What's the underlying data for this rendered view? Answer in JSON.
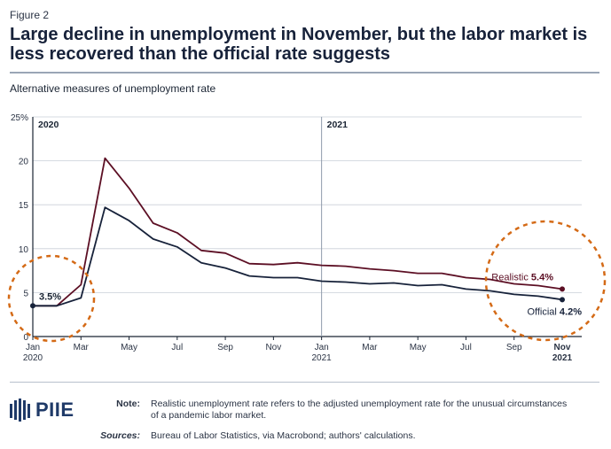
{
  "figure_label": "Figure 2",
  "title": "Large decline in unemployment in November, but the labor market is less recovered than the official rate suggests",
  "chart_data": {
    "type": "line",
    "title": "Large decline in unemployment in November, but the labor market is less recovered than the official rate suggests",
    "subtitle": "Alternative measures of unemployment rate",
    "ylim": [
      0,
      25
    ],
    "yticks": [
      "0",
      "5",
      "10",
      "15",
      "20",
      "25%"
    ],
    "x_tick_labels": [
      {
        "label": "Jan",
        "sub": "2020",
        "index": 0
      },
      {
        "label": "Mar",
        "sub": "",
        "index": 2
      },
      {
        "label": "May",
        "sub": "",
        "index": 4
      },
      {
        "label": "Jul",
        "sub": "",
        "index": 6
      },
      {
        "label": "Sep",
        "sub": "",
        "index": 8
      },
      {
        "label": "Nov",
        "sub": "",
        "index": 10
      },
      {
        "label": "Jan",
        "sub": "2021",
        "index": 12
      },
      {
        "label": "Mar",
        "sub": "",
        "index": 14
      },
      {
        "label": "May",
        "sub": "",
        "index": 16
      },
      {
        "label": "Jul",
        "sub": "",
        "index": 18
      },
      {
        "label": "Sep",
        "sub": "",
        "index": 20
      },
      {
        "label": "Nov",
        "sub": "2021",
        "index": 22
      }
    ],
    "year_markers": [
      {
        "label": "2020",
        "index": 0
      },
      {
        "label": "2021",
        "index": 12
      }
    ],
    "series": [
      {
        "name": "Realistic",
        "color": "#5c0f24",
        "end_label": "5.4%",
        "values": [
          3.5,
          3.5,
          5.9,
          20.3,
          16.9,
          12.9,
          11.8,
          9.8,
          9.5,
          8.3,
          8.2,
          8.4,
          8.1,
          8.0,
          7.7,
          7.5,
          7.2,
          7.2,
          6.7,
          6.5,
          6.0,
          5.8,
          5.4
        ]
      },
      {
        "name": "Official",
        "color": "#17223a",
        "end_label": "4.2%",
        "values": [
          3.5,
          3.5,
          4.4,
          14.7,
          13.2,
          11.1,
          10.2,
          8.4,
          7.8,
          6.9,
          6.7,
          6.7,
          6.3,
          6.2,
          6.0,
          6.1,
          5.8,
          5.9,
          5.4,
          5.2,
          4.8,
          4.6,
          4.2
        ]
      }
    ],
    "start_label": "3.5%",
    "highlight_color": "#d46a16"
  },
  "notes": {
    "note_label": "Note:",
    "note_text": "Realistic unemployment rate refers to the adjusted unemployment rate for the unusual circumstances of a pandemic labor market.",
    "sources_label": "Sources:",
    "sources_text": "Bureau of Labor Statistics, via Macrobond; authors' calculations."
  },
  "logo": {
    "text": "PIIE",
    "icon": "piie-logo-icon"
  }
}
